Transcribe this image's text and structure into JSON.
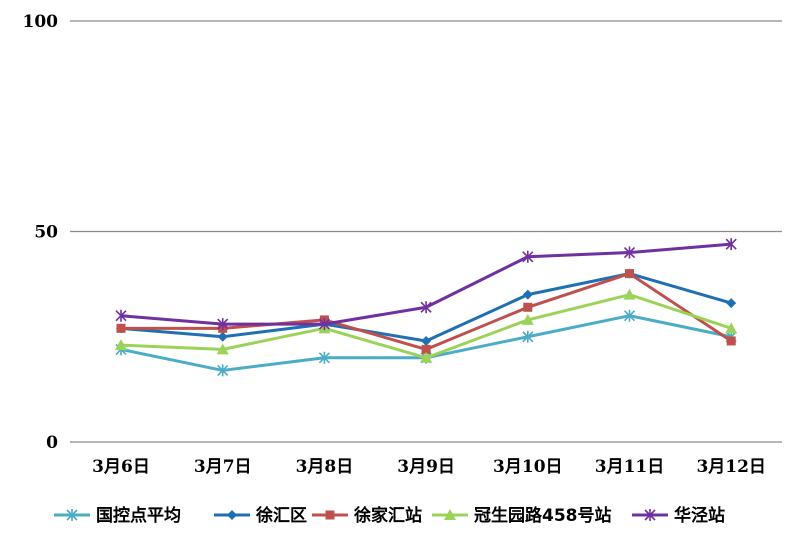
{
  "chart_data": {
    "type": "line",
    "categories": [
      "3月6日",
      "3月7日",
      "3月8日",
      "3月9日",
      "3月10日",
      "3月11日",
      "3月12日"
    ],
    "ylim": [
      0,
      100
    ],
    "yticks": [
      "0",
      "50",
      "100"
    ],
    "grid": true,
    "legend_position": "bottom",
    "series": [
      {
        "name": "国控点平均",
        "color": "#4bacc6",
        "marker": "star",
        "values": [
          22,
          17,
          20,
          20,
          25,
          30,
          25
        ]
      },
      {
        "name": "徐汇区",
        "color": "#1f6fb4",
        "marker": "diamond",
        "values": [
          27,
          25,
          28,
          24,
          35,
          40,
          33
        ]
      },
      {
        "name": "徐家汇站",
        "color": "#c0504d",
        "marker": "square",
        "values": [
          27,
          27,
          29,
          22,
          32,
          40,
          24
        ]
      },
      {
        "name": "冠生园路458号站",
        "color": "#9bd35a",
        "marker": "triangle",
        "values": [
          23,
          22,
          27,
          20,
          29,
          35,
          27
        ]
      },
      {
        "name": "华泾站",
        "color": "#7030a0",
        "marker": "star",
        "values": [
          30,
          28,
          28,
          32,
          44,
          45,
          47
        ]
      }
    ]
  }
}
